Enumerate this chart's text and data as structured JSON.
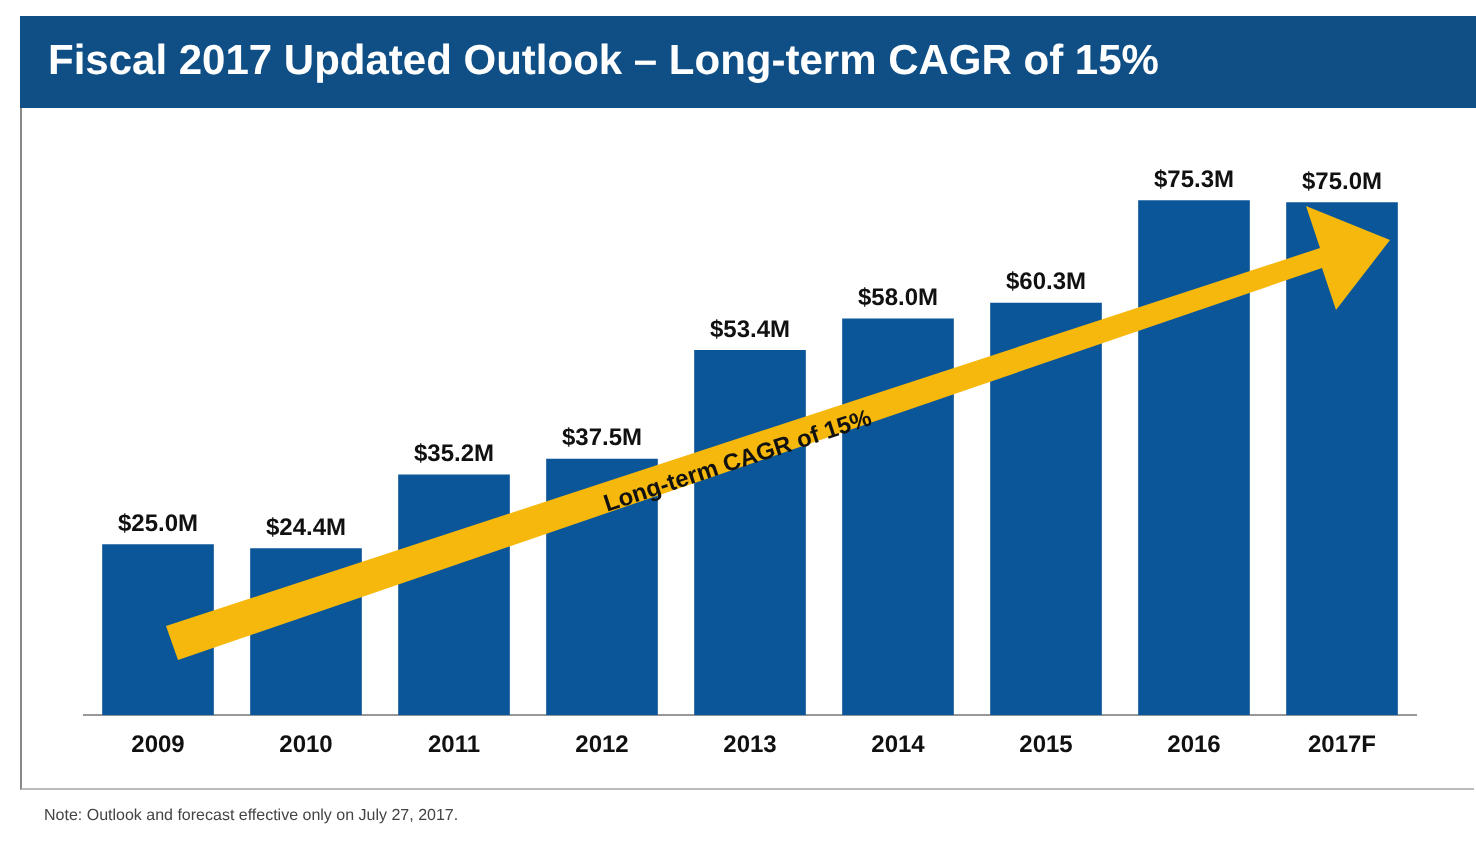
{
  "chart_data": {
    "type": "bar",
    "title": "Fiscal 2017 Updated Outlook – Long-term CAGR of 15%",
    "categories": [
      "2009",
      "2010",
      "2011",
      "2012",
      "2013",
      "2014",
      "2015",
      "2016",
      "2017F"
    ],
    "values": [
      25.0,
      24.4,
      35.2,
      37.5,
      53.4,
      58.0,
      60.3,
      75.3,
      75.0
    ],
    "value_labels": [
      "$25.0M",
      "$24.4M",
      "$35.2M",
      "$37.5M",
      "$53.4M",
      "$58.0M",
      "$60.3M",
      "$75.3M",
      "$75.0M"
    ],
    "color": "#0b5699",
    "annotations": [
      "Long-term CAGR of 15%",
      "Note: Outlook and forecast effective only on July 27, 2017."
    ]
  }
}
